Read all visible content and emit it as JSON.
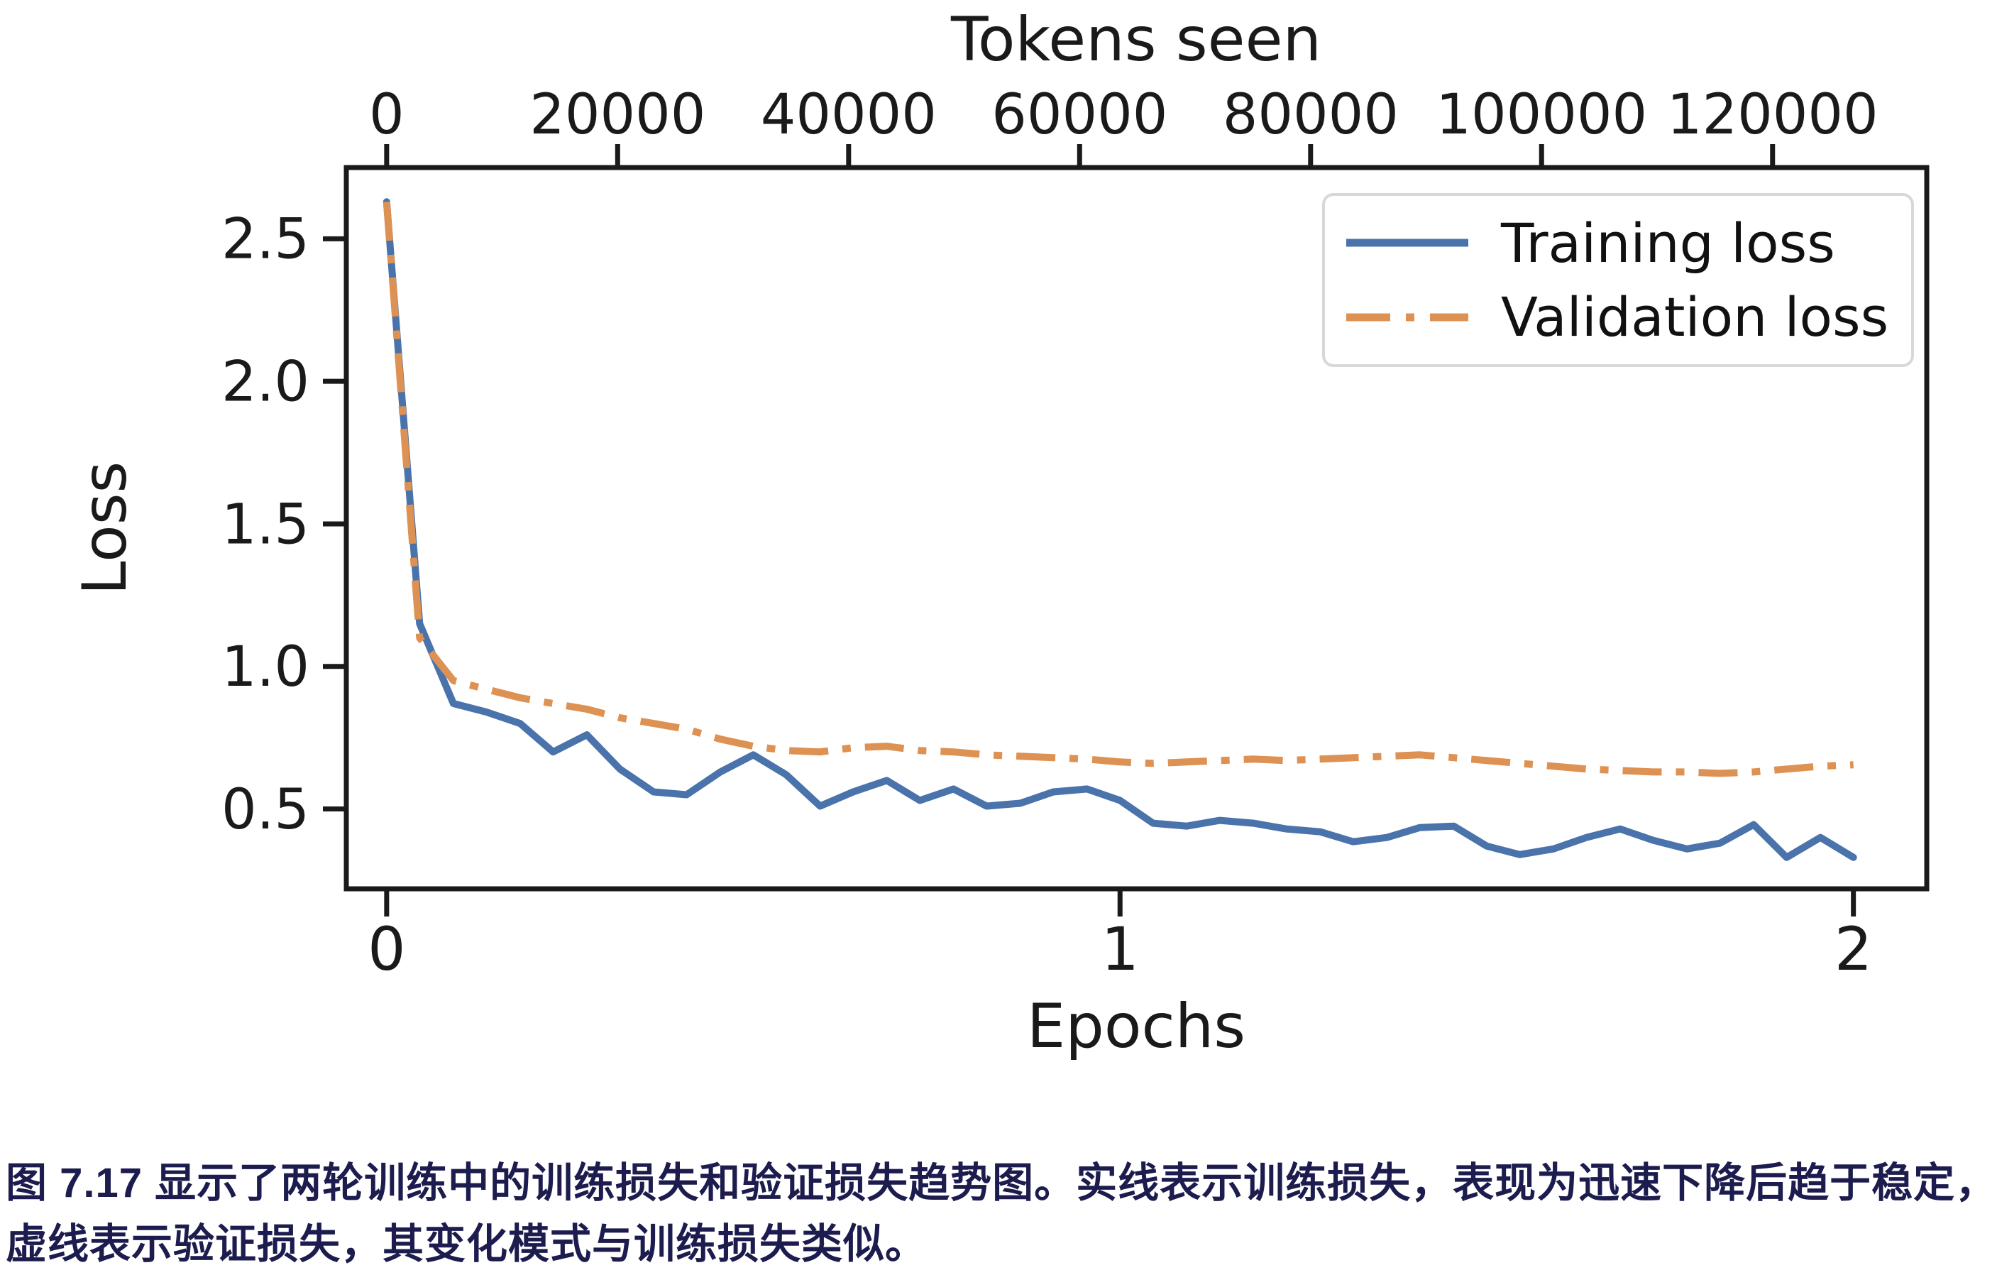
{
  "caption": {
    "line1": "图 7.17 显示了两轮训练中的训练损失和验证损失趋势图。实线表示训练损失，表现为迅速下降后趋于稳定，",
    "line2": "虚线表示验证损失，其变化模式与训练损失类似。"
  },
  "colors": {
    "training_loss": "#4a73ab",
    "validation_loss": "#dd9152",
    "axis": "#1a1a1a",
    "legend_border": "#d8d8d8",
    "caption_text": "#1c1c4e"
  },
  "chart_data": {
    "type": "line",
    "top_axis_label": "Tokens seen",
    "xlabel": "Epochs",
    "ylabel": "Loss",
    "x_ticks": [
      0,
      1,
      2
    ],
    "y_ticks": [
      0.5,
      1.0,
      1.5,
      2.0,
      2.5
    ],
    "top_ticks_tokens": [
      0,
      20000,
      40000,
      60000,
      80000,
      100000,
      120000
    ],
    "tokens_per_epoch": 63500,
    "xlim": [
      -0.055,
      2.1
    ],
    "ylim": [
      0.22,
      2.75
    ],
    "grid": false,
    "legend_position": "upper right",
    "x_epochs": [
      0.0,
      0.045,
      0.091,
      0.136,
      0.182,
      0.227,
      0.273,
      0.318,
      0.364,
      0.409,
      0.455,
      0.5,
      0.545,
      0.591,
      0.636,
      0.682,
      0.727,
      0.773,
      0.818,
      0.864,
      0.909,
      0.955,
      1.0,
      1.045,
      1.091,
      1.136,
      1.182,
      1.227,
      1.273,
      1.318,
      1.364,
      1.409,
      1.455,
      1.5,
      1.545,
      1.591,
      1.636,
      1.682,
      1.727,
      1.773,
      1.818,
      1.864,
      1.909,
      1.955,
      2.0
    ],
    "series": [
      {
        "name": "Training loss",
        "style": "solid",
        "color": "#4a73ab",
        "values": [
          2.63,
          1.15,
          0.87,
          0.84,
          0.8,
          0.7,
          0.76,
          0.64,
          0.56,
          0.55,
          0.63,
          0.69,
          0.62,
          0.51,
          0.56,
          0.6,
          0.53,
          0.57,
          0.51,
          0.52,
          0.56,
          0.57,
          0.53,
          0.45,
          0.44,
          0.46,
          0.45,
          0.43,
          0.42,
          0.385,
          0.4,
          0.435,
          0.44,
          0.37,
          0.34,
          0.36,
          0.4,
          0.43,
          0.39,
          0.36,
          0.38,
          0.445,
          0.33,
          0.4,
          0.33
        ]
      },
      {
        "name": "Validation loss",
        "style": "dash-dot",
        "color": "#dd9152",
        "values": [
          2.63,
          1.1,
          0.95,
          0.92,
          0.89,
          0.87,
          0.85,
          0.82,
          0.8,
          0.78,
          0.745,
          0.72,
          0.705,
          0.7,
          0.715,
          0.72,
          0.705,
          0.7,
          0.69,
          0.685,
          0.68,
          0.675,
          0.665,
          0.66,
          0.665,
          0.67,
          0.675,
          0.67,
          0.675,
          0.68,
          0.685,
          0.69,
          0.68,
          0.67,
          0.66,
          0.65,
          0.64,
          0.635,
          0.63,
          0.63,
          0.625,
          0.63,
          0.64,
          0.65,
          0.655
        ]
      }
    ]
  }
}
